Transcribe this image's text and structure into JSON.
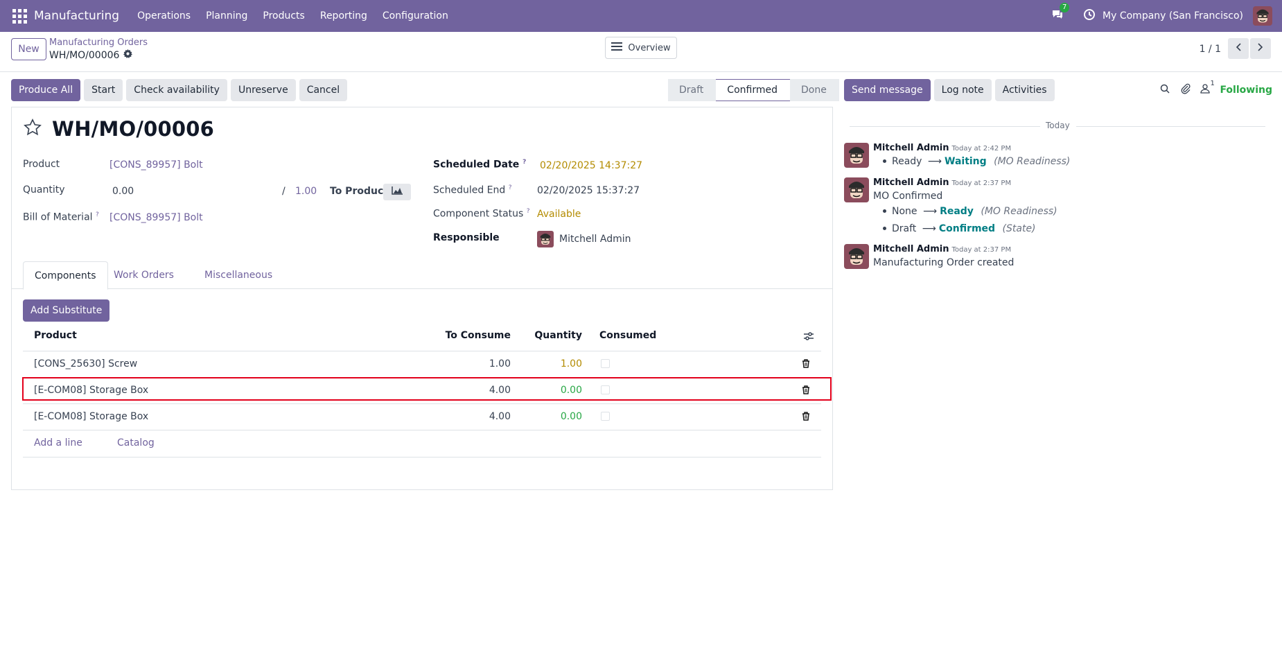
{
  "navbar": {
    "app_name": "Manufacturing",
    "menu": [
      "Operations",
      "Planning",
      "Products",
      "Reporting",
      "Configuration"
    ],
    "messages_count": "7",
    "company": "My Company (San Francisco)"
  },
  "control_panel": {
    "new_label": "New",
    "breadcrumb_parent": "Manufacturing Orders",
    "breadcrumb_current": "WH/MO/00006",
    "overview_label": "Overview",
    "pager": "1 / 1"
  },
  "actions": {
    "produce_all": "Produce All",
    "start": "Start",
    "check_availability": "Check availability",
    "unreserve": "Unreserve",
    "cancel": "Cancel"
  },
  "status_bar": {
    "stages": [
      "Draft",
      "Confirmed",
      "Done"
    ],
    "current": "Confirmed"
  },
  "chatter_actions": {
    "send_message": "Send message",
    "log_note": "Log note",
    "activities": "Activities",
    "followers_count": "1",
    "following": "Following"
  },
  "form": {
    "title": "WH/MO/00006",
    "product_label": "Product",
    "product_value": "[CONS_89957] Bolt",
    "quantity_label": "Quantity",
    "quantity_value": "0.00",
    "quantity_sep": "/",
    "quantity_target": "1.00",
    "to_produce": "To Produce",
    "bom_label": "Bill of Material",
    "bom_value": "[CONS_89957] Bolt",
    "scheduled_date_label": "Scheduled Date",
    "scheduled_date_value": "02/20/2025 14:37:27",
    "scheduled_end_label": "Scheduled End",
    "scheduled_end_value": "02/20/2025 15:37:27",
    "component_status_label": "Component Status",
    "component_status_value": "Available",
    "responsible_label": "Responsible",
    "responsible_value": "Mitchell Admin",
    "help_mark": "?"
  },
  "tabs": [
    "Components",
    "Work Orders",
    "Miscellaneous"
  ],
  "components": {
    "add_substitute": "Add Substitute",
    "headers": {
      "product": "Product",
      "to_consume": "To Consume",
      "quantity": "Quantity",
      "consumed": "Consumed"
    },
    "rows": [
      {
        "product": "[CONS_25630] Screw",
        "to_consume": "1.00",
        "quantity": "1.00",
        "qty_color": "#b38b00"
      },
      {
        "product": "[E-COM08] Storage Box",
        "to_consume": "4.00",
        "quantity": "0.00",
        "qty_color": "#28a745"
      },
      {
        "product": "[E-COM08] Storage Box",
        "to_consume": "4.00",
        "quantity": "0.00",
        "qty_color": "#28a745"
      }
    ],
    "add_line": "Add a line",
    "catalog": "Catalog"
  },
  "chatter": {
    "day_label": "Today",
    "messages": [
      {
        "author": "Mitchell Admin",
        "time": "Today at 2:42 PM",
        "tracking": [
          {
            "old": "Ready",
            "new": "Waiting",
            "field": "(MO Readiness)"
          }
        ]
      },
      {
        "author": "Mitchell Admin",
        "time": "Today at 2:37 PM",
        "body": "MO Confirmed",
        "tracking": [
          {
            "old": "None",
            "new": "Ready",
            "field": "(MO Readiness)"
          },
          {
            "old": "Draft",
            "new": "Confirmed",
            "field": "(State)"
          }
        ]
      },
      {
        "author": "Mitchell Admin",
        "time": "Today at 2:37 PM",
        "body": "Manufacturing Order created"
      }
    ]
  },
  "colors": {
    "brand": "#71639e",
    "success": "#28a745",
    "warning": "#b38b00",
    "teal": "#017e84",
    "highlight": "#e3001b"
  }
}
